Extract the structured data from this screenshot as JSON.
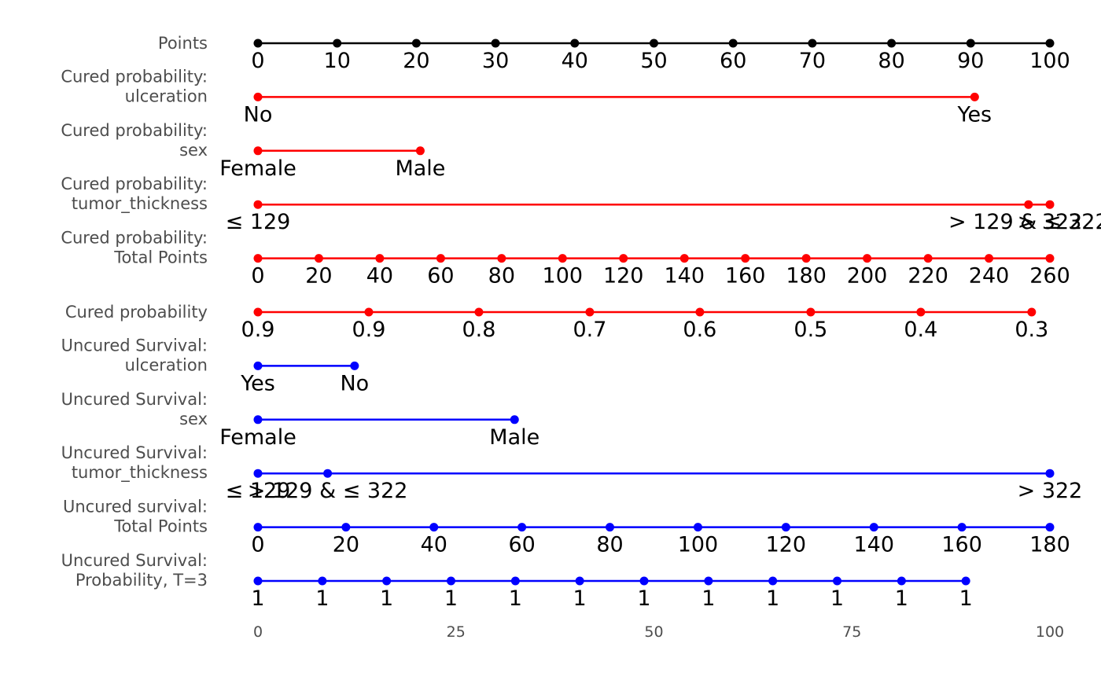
{
  "chart_data": {
    "type": "nomogram",
    "x_axis": {
      "range": [
        0,
        100
      ],
      "ticks": [
        "0",
        "25",
        "50",
        "75",
        "100"
      ]
    },
    "rows": [
      {
        "label": [
          "Points"
        ],
        "color": "#000000",
        "points": [
          [
            0,
            "0"
          ],
          [
            10,
            "10"
          ],
          [
            20,
            "20"
          ],
          [
            30,
            "30"
          ],
          [
            40,
            "40"
          ],
          [
            50,
            "50"
          ],
          [
            60,
            "60"
          ],
          [
            70,
            "70"
          ],
          [
            80,
            "80"
          ],
          [
            90,
            "90"
          ],
          [
            100,
            "100"
          ]
        ]
      },
      {
        "label": [
          "Cured probability:",
          "ulceration"
        ],
        "color": "#ff0000",
        "points": [
          [
            0,
            "No"
          ],
          [
            90.5,
            "Yes"
          ]
        ]
      },
      {
        "label": [
          "Cured probability:",
          "sex"
        ],
        "color": "#ff0000",
        "points": [
          [
            0,
            "Female"
          ],
          [
            20.5,
            "Male"
          ]
        ]
      },
      {
        "label": [
          "Cured probability:",
          "tumor_thickness"
        ],
        "color": "#ff0000",
        "points": [
          [
            0,
            "≤ 129"
          ],
          [
            97.3,
            "> 129 & ≤ 322"
          ],
          [
            100,
            "> 322"
          ]
        ]
      },
      {
        "label": [
          "Cured probability:",
          "Total Points"
        ],
        "color": "#ff0000",
        "points": [
          [
            0,
            "0"
          ],
          [
            7.69,
            "20"
          ],
          [
            15.38,
            "40"
          ],
          [
            23.08,
            "60"
          ],
          [
            30.77,
            "80"
          ],
          [
            38.46,
            "100"
          ],
          [
            46.15,
            "120"
          ],
          [
            53.85,
            "140"
          ],
          [
            61.54,
            "160"
          ],
          [
            69.23,
            "180"
          ],
          [
            76.92,
            "200"
          ],
          [
            84.62,
            "220"
          ],
          [
            92.31,
            "240"
          ],
          [
            100,
            "260"
          ]
        ]
      },
      {
        "label": [
          "Cured probability"
        ],
        "color": "#ff0000",
        "points": [
          [
            0,
            "0.9"
          ],
          [
            14,
            "0.9"
          ],
          [
            27.9,
            "0.8"
          ],
          [
            41.9,
            "0.7"
          ],
          [
            55.8,
            "0.6"
          ],
          [
            69.8,
            "0.5"
          ],
          [
            83.7,
            "0.4"
          ],
          [
            97.7,
            "0.3"
          ]
        ]
      },
      {
        "label": [
          "Uncured Survival:",
          "ulceration"
        ],
        "color": "#0000ff",
        "points": [
          [
            0,
            "Yes"
          ],
          [
            12.2,
            "No"
          ]
        ]
      },
      {
        "label": [
          "Uncured Survival:",
          "sex"
        ],
        "color": "#0000ff",
        "points": [
          [
            0,
            "Female"
          ],
          [
            32.4,
            "Male"
          ]
        ]
      },
      {
        "label": [
          "Uncured Survival:",
          "tumor_thickness"
        ],
        "color": "#0000ff",
        "points": [
          [
            0,
            "≤ 129"
          ],
          [
            8.8,
            "> 129 & ≤ 322"
          ],
          [
            100,
            "> 322"
          ]
        ]
      },
      {
        "label": [
          "Uncured survival:",
          "Total Points"
        ],
        "color": "#0000ff",
        "points": [
          [
            0,
            "0"
          ],
          [
            11.11,
            "20"
          ],
          [
            22.22,
            "40"
          ],
          [
            33.33,
            "60"
          ],
          [
            44.44,
            "80"
          ],
          [
            55.56,
            "100"
          ],
          [
            66.67,
            "120"
          ],
          [
            77.78,
            "140"
          ],
          [
            88.89,
            "160"
          ],
          [
            100,
            "180"
          ]
        ]
      },
      {
        "label": [
          "Uncured Survival:",
          "Probability, T=3"
        ],
        "color": "#0000ff",
        "points": [
          [
            0,
            "1"
          ],
          [
            8.13,
            "1"
          ],
          [
            16.25,
            "1"
          ],
          [
            24.38,
            "1"
          ],
          [
            32.51,
            "1"
          ],
          [
            40.63,
            "1"
          ],
          [
            48.76,
            "1"
          ],
          [
            56.89,
            "1"
          ],
          [
            65.01,
            "1"
          ],
          [
            73.14,
            "1"
          ],
          [
            81.27,
            "1"
          ],
          [
            89.39,
            "1"
          ]
        ]
      }
    ]
  }
}
